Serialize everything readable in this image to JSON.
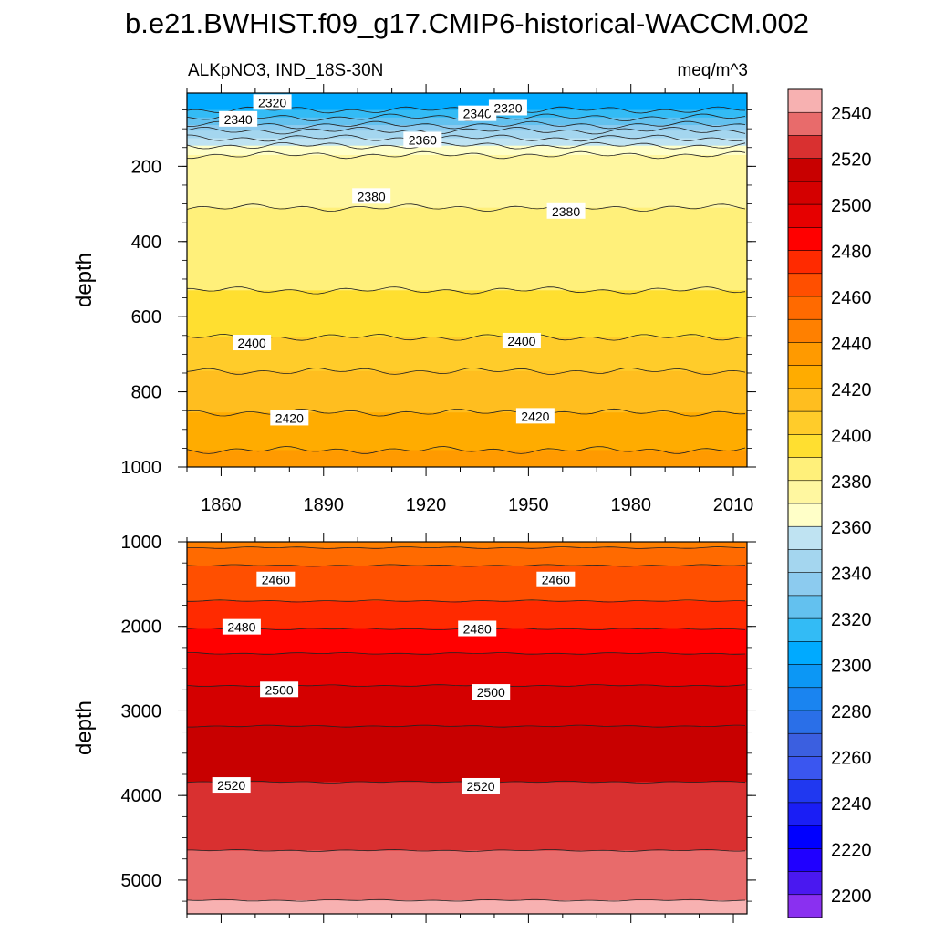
{
  "chart_data": {
    "type": "heatmap",
    "title": "b.e21.BWHIST.f09_g17.CMIP6-historical-WACCM.002",
    "subtitle_left": "ALKpNO3, IND_18S-30N",
    "subtitle_right": "meq/m^3",
    "x_ticks": [
      "1860",
      "1890",
      "1920",
      "1950",
      "1980",
      "2010"
    ],
    "x_range": [
      1850,
      2014
    ],
    "colorbar": {
      "levels_top_to_bottom": [
        2550,
        2540,
        2530,
        2520,
        2510,
        2500,
        2490,
        2480,
        2470,
        2460,
        2450,
        2440,
        2430,
        2420,
        2410,
        2400,
        2390,
        2380,
        2370,
        2360,
        2350,
        2340,
        2330,
        2320,
        2310,
        2300,
        2290,
        2280,
        2270,
        2260,
        2250,
        2240,
        2230,
        2220,
        2210,
        2200
      ],
      "labels": [
        "2540",
        "2520",
        "2500",
        "2480",
        "2460",
        "2440",
        "2420",
        "2400",
        "2380",
        "2360",
        "2340",
        "2320",
        "2300",
        "2280",
        "2260",
        "2240",
        "2220",
        "2200"
      ],
      "colors_top_to_bottom": [
        "#f7b1b1",
        "#e86b6b",
        "#d93030",
        "#c80000",
        "#d40000",
        "#e60000",
        "#ff0000",
        "#ff2a00",
        "#ff4f00",
        "#ff6a00",
        "#ff8000",
        "#ff9a00",
        "#ffac00",
        "#ffbe1f",
        "#ffcc2a",
        "#ffdf30",
        "#fff07a",
        "#fff7a0",
        "#ffffc8",
        "#bfe3f2",
        "#a4d6ef",
        "#8ccbef",
        "#63c1ef",
        "#33bbf5",
        "#00aaff",
        "#0c97f5",
        "#1a84f0",
        "#2a6fe8",
        "#3b5fe0",
        "#3a56f0",
        "#2038f0",
        "#1a1ef5",
        "#0000ff",
        "#2000ff",
        "#4a18f0",
        "#8a30f0"
      ]
    },
    "panels": [
      {
        "name": "upper",
        "ylabel": "depth",
        "y_range": [
          5,
          1000
        ],
        "y_ticks": [
          "200",
          "400",
          "600",
          "800",
          "1000"
        ],
        "contours": [
          {
            "value": 2310,
            "depth": 50
          },
          {
            "value": 2320,
            "depth": 70
          },
          {
            "value": 2330,
            "depth": 90
          },
          {
            "value": 2340,
            "depth": 105
          },
          {
            "value": 2350,
            "depth": 125
          },
          {
            "value": 2360,
            "depth": 145
          },
          {
            "value": 2370,
            "depth": 170
          },
          {
            "value": 2380,
            "depth": 310
          },
          {
            "value": 2390,
            "depth": 530
          },
          {
            "value": 2400,
            "depth": 655
          },
          {
            "value": 2410,
            "depth": 745
          },
          {
            "value": 2420,
            "depth": 855
          },
          {
            "value": 2430,
            "depth": 955
          }
        ],
        "contour_labels": [
          {
            "text": "2320",
            "x": 1875,
            "depth": 30
          },
          {
            "text": "2340",
            "x": 1865,
            "depth": 75
          },
          {
            "text": "2340",
            "x": 1935,
            "depth": 60
          },
          {
            "text": "2320",
            "x": 1944,
            "depth": 45
          },
          {
            "text": "2360",
            "x": 1919,
            "depth": 130
          },
          {
            "text": "2380",
            "x": 1904,
            "depth": 280
          },
          {
            "text": "2380",
            "x": 1961,
            "depth": 320
          },
          {
            "text": "2400",
            "x": 1869,
            "depth": 670
          },
          {
            "text": "2400",
            "x": 1948,
            "depth": 665
          },
          {
            "text": "2420",
            "x": 1880,
            "depth": 870
          },
          {
            "text": "2420",
            "x": 1952,
            "depth": 865
          }
        ]
      },
      {
        "name": "lower",
        "ylabel": "depth",
        "y_range": [
          1000,
          5400
        ],
        "y_ticks": [
          "1000",
          "2000",
          "3000",
          "4000",
          "5000"
        ],
        "contours": [
          {
            "value": 2450,
            "depth": 1070
          },
          {
            "value": 2460,
            "depth": 1280
          },
          {
            "value": 2470,
            "depth": 1700
          },
          {
            "value": 2480,
            "depth": 2030
          },
          {
            "value": 2490,
            "depth": 2320
          },
          {
            "value": 2500,
            "depth": 2700
          },
          {
            "value": 2510,
            "depth": 3180
          },
          {
            "value": 2520,
            "depth": 3840
          },
          {
            "value": 2530,
            "depth": 4650
          },
          {
            "value": 2540,
            "depth": 5240
          }
        ],
        "contour_labels": [
          {
            "text": "2460",
            "x": 1876,
            "depth": 1450
          },
          {
            "text": "2460",
            "x": 1958,
            "depth": 1450
          },
          {
            "text": "2480",
            "x": 1866,
            "depth": 2010
          },
          {
            "text": "2480",
            "x": 1935,
            "depth": 2030
          },
          {
            "text": "2500",
            "x": 1877,
            "depth": 2750
          },
          {
            "text": "2500",
            "x": 1939,
            "depth": 2780
          },
          {
            "text": "2520",
            "x": 1863,
            "depth": 3880
          },
          {
            "text": "2520",
            "x": 1936,
            "depth": 3890
          }
        ]
      }
    ]
  }
}
